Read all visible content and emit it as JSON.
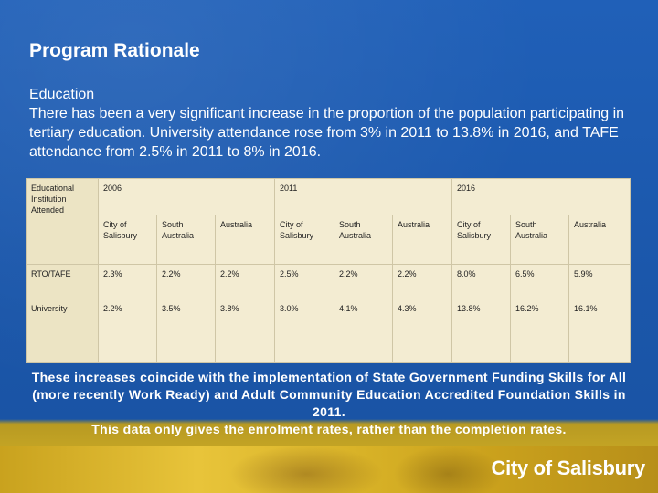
{
  "slide": {
    "title": "Program Rationale",
    "section_heading": "Education",
    "paragraph": "There has been a very significant increase in the proportion of the population participating in tertiary education.  University attendance rose from 3% in 2011 to 13.8% in 2016, and TAFE attendance from 2.5% in 2011 to 8% in 2016."
  },
  "table": {
    "corner_label": "Educational Institution Attended",
    "years": [
      "2006",
      "2011",
      "2016"
    ],
    "sub_headers": [
      "City of Salisbury",
      "South Australia",
      "Australia",
      "City of Salisbury",
      "South Australia",
      "Australia",
      "City of Salisbury",
      "South Australia",
      "Australia"
    ],
    "rows": [
      {
        "label": "RTO/TAFE",
        "values": [
          "2.3%",
          "2.2%",
          "2.2%",
          "2.5%",
          "2.2%",
          "2.2%",
          "8.0%",
          "6.5%",
          "5.9%"
        ]
      },
      {
        "label": "University",
        "values": [
          "2.2%",
          "3.5%",
          "3.8%",
          "3.0%",
          "4.1%",
          "4.3%",
          "13.8%",
          "16.2%",
          "16.1%"
        ]
      }
    ]
  },
  "footnote": {
    "line1": "These increases coincide with the implementation of State Government Funding Skills for All (more recently Work Ready) and Adult Community Education Accredited Foundation Skills in 2011.",
    "line2": "This data only gives the enrolment rates, rather than the completion rates."
  },
  "branding": {
    "logo_text": "City of Salisbury"
  }
}
